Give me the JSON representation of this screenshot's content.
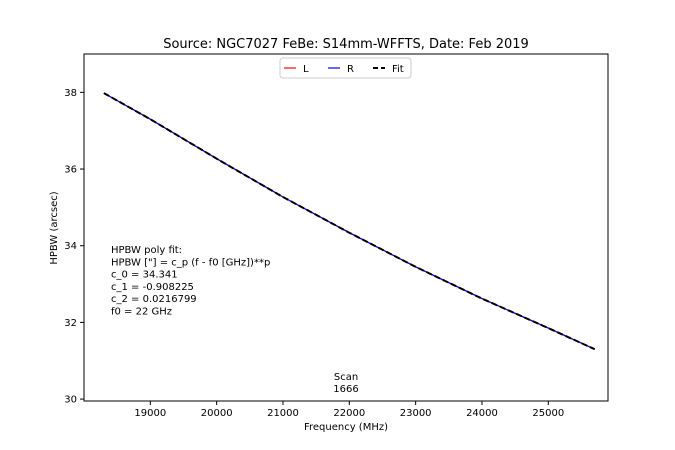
{
  "chart_data": {
    "type": "line",
    "title": "Source: NGC7027 FeBe: S14mm-WFFTS, Date: Feb 2019",
    "xlabel": "Frequency (MHz)",
    "ylabel": "HPBW (arcsec)",
    "xlim": [
      18000,
      25900
    ],
    "ylim": [
      29.95,
      39.0
    ],
    "xticks": [
      19000,
      20000,
      21000,
      22000,
      23000,
      24000,
      25000
    ],
    "yticks": [
      30,
      32,
      34,
      36,
      38
    ],
    "grid": false,
    "legend_position": "top-center",
    "series": [
      {
        "name": "L",
        "color": "#ff0000",
        "dash": "solid",
        "x": [
          18300,
          19000,
          20000,
          21000,
          22000,
          23000,
          24000,
          25000,
          25700
        ],
        "y": [
          37.98,
          37.3,
          36.27,
          35.27,
          34.34,
          33.45,
          32.62,
          31.85,
          31.3
        ]
      },
      {
        "name": "R",
        "color": "#0000ff",
        "dash": "solid",
        "x": [
          18300,
          19000,
          20000,
          21000,
          22000,
          23000,
          24000,
          25000,
          25700
        ],
        "y": [
          37.98,
          37.3,
          36.27,
          35.27,
          34.34,
          33.45,
          32.62,
          31.85,
          31.3
        ]
      },
      {
        "name": "Fit",
        "color": "#000000",
        "dash": "dashed",
        "x": [
          18300,
          19000,
          20000,
          21000,
          22000,
          23000,
          24000,
          25000,
          25700
        ],
        "y": [
          37.98,
          37.3,
          36.27,
          35.27,
          34.34,
          33.45,
          32.62,
          31.85,
          31.3
        ]
      }
    ],
    "annotations": {
      "fit_text": [
        "HPBW poly fit:",
        "HPBW [\"] = c_p (f - f0 [GHz])**p",
        "c_0 = 34.341",
        "c_1 = -0.908225",
        "c_2 = 0.0216799",
        "f0 = 22 GHz"
      ],
      "scan_text": [
        "Scan",
        "1666"
      ]
    }
  }
}
